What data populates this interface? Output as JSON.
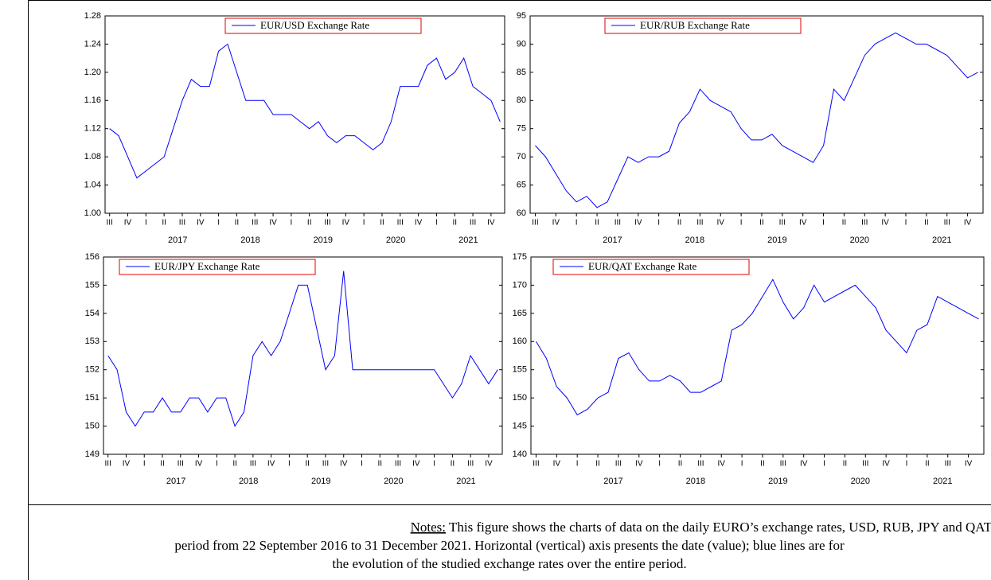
{
  "chart_data": [
    {
      "type": "line",
      "categories": [
        "III",
        null,
        "IV",
        null,
        "I",
        null,
        "II",
        null,
        "III",
        null,
        "IV",
        null,
        "I",
        null,
        "II",
        null,
        "III",
        null,
        "IV",
        null,
        "I",
        null,
        "II",
        null,
        "III",
        null,
        "IV",
        null,
        "I",
        null,
        "II",
        null,
        "III",
        null,
        "IV",
        null,
        "I",
        null,
        "II",
        null,
        "III",
        null,
        "IV",
        null
      ],
      "year_labels": [
        "2017",
        "2018",
        "2019",
        "2020",
        "2021"
      ],
      "series": [
        {
          "name": "EUR/USD Exchange Rate",
          "color": "#0000ff",
          "values": [
            1.12,
            1.11,
            1.08,
            1.05,
            1.06,
            1.07,
            1.08,
            1.12,
            1.16,
            1.19,
            1.18,
            1.18,
            1.23,
            1.24,
            1.2,
            1.16,
            1.16,
            1.16,
            1.14,
            1.14,
            1.14,
            1.13,
            1.12,
            1.13,
            1.11,
            1.1,
            1.11,
            1.11,
            1.1,
            1.09,
            1.1,
            1.13,
            1.18,
            1.18,
            1.18,
            1.21,
            1.22,
            1.19,
            1.2,
            1.22,
            1.18,
            1.17,
            1.16,
            1.13
          ]
        }
      ],
      "ylim": [
        1.0,
        1.28
      ],
      "yticks": [
        {
          "value": 1.0,
          "label": "1.00"
        },
        1.04,
        1.08,
        1.12,
        1.16,
        {
          "value": 1.2,
          "label": "1.20"
        },
        1.24,
        1.28
      ]
    },
    {
      "type": "line",
      "categories": [
        "III",
        null,
        "IV",
        null,
        "I",
        null,
        "II",
        null,
        "III",
        null,
        "IV",
        null,
        "I",
        null,
        "II",
        null,
        "III",
        null,
        "IV",
        null,
        "I",
        null,
        "II",
        null,
        "III",
        null,
        "IV",
        null,
        "I",
        null,
        "II",
        null,
        "III",
        null,
        "IV",
        null,
        "I",
        null,
        "II",
        null,
        "III",
        null,
        "IV",
        null
      ],
      "year_labels": [
        "2017",
        "2018",
        "2019",
        "2020",
        "2021"
      ],
      "series": [
        {
          "name": "EUR/RUB Exchange Rate",
          "color": "#0000ff",
          "values": [
            72,
            70,
            67,
            64,
            62,
            63,
            61,
            62,
            66,
            70,
            69,
            70,
            70,
            71,
            76,
            78,
            82,
            80,
            79,
            78,
            75,
            73,
            73,
            74,
            72,
            71,
            70,
            69,
            72,
            82,
            80,
            84,
            88,
            90,
            91,
            92,
            91,
            90,
            90,
            89,
            88,
            86,
            84,
            85
          ]
        }
      ],
      "ylim": [
        60,
        95
      ],
      "yticks": [
        60,
        65,
        70,
        75,
        80,
        85,
        90,
        95
      ]
    },
    {
      "type": "line",
      "categories": [
        "III",
        null,
        "IV",
        null,
        "I",
        null,
        "II",
        null,
        "III",
        null,
        "IV",
        null,
        "I",
        null,
        "II",
        null,
        "III",
        null,
        "IV",
        null,
        "I",
        null,
        "II",
        null,
        "III",
        null,
        "IV",
        null,
        "I",
        null,
        "II",
        null,
        "III",
        null,
        "IV",
        null,
        "I",
        null,
        "II",
        null,
        "III",
        null,
        "IV",
        null
      ],
      "year_labels": [
        "2017",
        "2018",
        "2019",
        "2020",
        "2021"
      ],
      "series": [
        {
          "name": "EUR/JPY Exchange Rate",
          "color": "#0000ff",
          "values": [
            152.5,
            152,
            150.5,
            150,
            150.5,
            150.5,
            151,
            150.5,
            150.5,
            151,
            151,
            150.5,
            151,
            151,
            150,
            150.5,
            152.5,
            153,
            152.5,
            153,
            154,
            155,
            155,
            153.5,
            152,
            152.5,
            155.5,
            152,
            152,
            152,
            152,
            152,
            152,
            152,
            152,
            152,
            152,
            151.5,
            151,
            151.5,
            152.5,
            152,
            151.5,
            152
          ]
        }
      ],
      "ylim": [
        149,
        156
      ],
      "yticks": [
        149,
        150,
        151,
        152,
        153,
        154,
        155,
        156
      ]
    },
    {
      "type": "line",
      "categories": [
        "III",
        null,
        "IV",
        null,
        "I",
        null,
        "II",
        null,
        "III",
        null,
        "IV",
        null,
        "I",
        null,
        "II",
        null,
        "III",
        null,
        "IV",
        null,
        "I",
        null,
        "II",
        null,
        "III",
        null,
        "IV",
        null,
        "I",
        null,
        "II",
        null,
        "III",
        null,
        "IV",
        null,
        "I",
        null,
        "II",
        null,
        "III",
        null,
        "IV",
        null
      ],
      "year_labels": [
        "2017",
        "2018",
        "2019",
        "2020",
        "2021"
      ],
      "series": [
        {
          "name": "EUR/QAT Exchange Rate",
          "color": "#0000ff",
          "values": [
            160,
            157,
            152,
            150,
            147,
            148,
            150,
            151,
            157,
            158,
            155,
            153,
            153,
            154,
            153,
            151,
            151,
            152,
            153,
            162,
            163,
            165,
            168,
            171,
            167,
            164,
            166,
            170,
            167,
            168,
            169,
            170,
            168,
            166,
            162,
            160,
            158,
            162,
            163,
            168,
            167,
            166,
            165,
            164
          ]
        }
      ],
      "ylim": [
        140,
        175
      ],
      "yticks": [
        140,
        145,
        150,
        155,
        160,
        165,
        170,
        175
      ]
    }
  ],
  "notes": {
    "label": "Notes:",
    "text_lines": [
      "This figure shows the charts of data on the daily EURO’s exchange rates, USD, RUB, JPY and QAT on the studied",
      "period from 22 September 2016 to 31 December 2021. Horizontal (vertical) axis presents the date (value); blue lines are for",
      "the evolution of the studied exchange rates over the entire period."
    ]
  }
}
